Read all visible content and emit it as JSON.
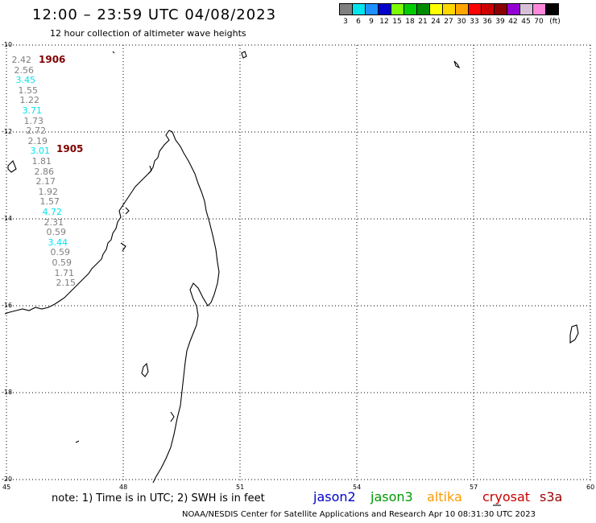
{
  "header": {
    "title": "12:00 – 23:59 UTC 04/08/2023",
    "subtitle": "12 hour collection of altimeter wave heights"
  },
  "legend": {
    "swatches": [
      "#808080",
      "#00e5ee",
      "#1e90ff",
      "#0000cd",
      "#7cfc00",
      "#00cd00",
      "#008b00",
      "#ffff00",
      "#ffd700",
      "#ffa500",
      "#ff0000",
      "#cd0000",
      "#8b0000",
      "#9400d3",
      "#d8bfd8",
      "#ff88dd",
      "#000000"
    ],
    "labels": [
      "3",
      "6",
      "9",
      "12",
      "15",
      "18",
      "21",
      "24",
      "27",
      "30",
      "33",
      "36",
      "39",
      "42",
      "45",
      "70",
      "(ft)"
    ]
  },
  "axes": {
    "y_labels": [
      "-10",
      "-12",
      "-14",
      "-16",
      "-18",
      "-20"
    ],
    "x_labels": [
      "45",
      "48",
      "51",
      "54",
      "57",
      "60"
    ]
  },
  "track_ids": [
    "1906",
    "1905"
  ],
  "wave_heights": [
    {
      "v": "2.42",
      "c": "#808080"
    },
    {
      "v": "2.56",
      "c": "#808080"
    },
    {
      "v": "3.45",
      "c": "#00e5ee"
    },
    {
      "v": "1.55",
      "c": "#808080"
    },
    {
      "v": "1.22",
      "c": "#808080"
    },
    {
      "v": "3.71",
      "c": "#00e5ee"
    },
    {
      "v": "1.73",
      "c": "#808080"
    },
    {
      "v": "2.72",
      "c": "#808080"
    },
    {
      "v": "2.19",
      "c": "#808080"
    },
    {
      "v": "3.01",
      "c": "#00e5ee"
    },
    {
      "v": "1.81",
      "c": "#808080"
    },
    {
      "v": "2.86",
      "c": "#808080"
    },
    {
      "v": "2.17",
      "c": "#808080"
    },
    {
      "v": "1.92",
      "c": "#808080"
    },
    {
      "v": "1.57",
      "c": "#808080"
    },
    {
      "v": "4.72",
      "c": "#00e5ee"
    },
    {
      "v": "2.31",
      "c": "#808080"
    },
    {
      "v": "0.59",
      "c": "#808080"
    },
    {
      "v": "3.44",
      "c": "#00e5ee"
    },
    {
      "v": "0.59",
      "c": "#808080"
    },
    {
      "v": "0.59",
      "c": "#808080"
    },
    {
      "v": "1.71",
      "c": "#808080"
    },
    {
      "v": "2.15",
      "c": "#808080"
    }
  ],
  "footer": {
    "note": "note:  1) Time is in UTC;  2) SWH is in feet",
    "satellites": [
      {
        "name": "jason2",
        "color": "#0000cc"
      },
      {
        "name": "jason3",
        "color": "#009900"
      },
      {
        "name": "altika",
        "color": "#ff9900"
      },
      {
        "name": "cryosat",
        "color": "#cc0000"
      },
      {
        "name": "s3a",
        "color": "#990000"
      }
    ],
    "credit": "NOAA/NESDIS Center for Satellite Applications and Research    Apr 10 08:31:30 UTC 2023"
  }
}
